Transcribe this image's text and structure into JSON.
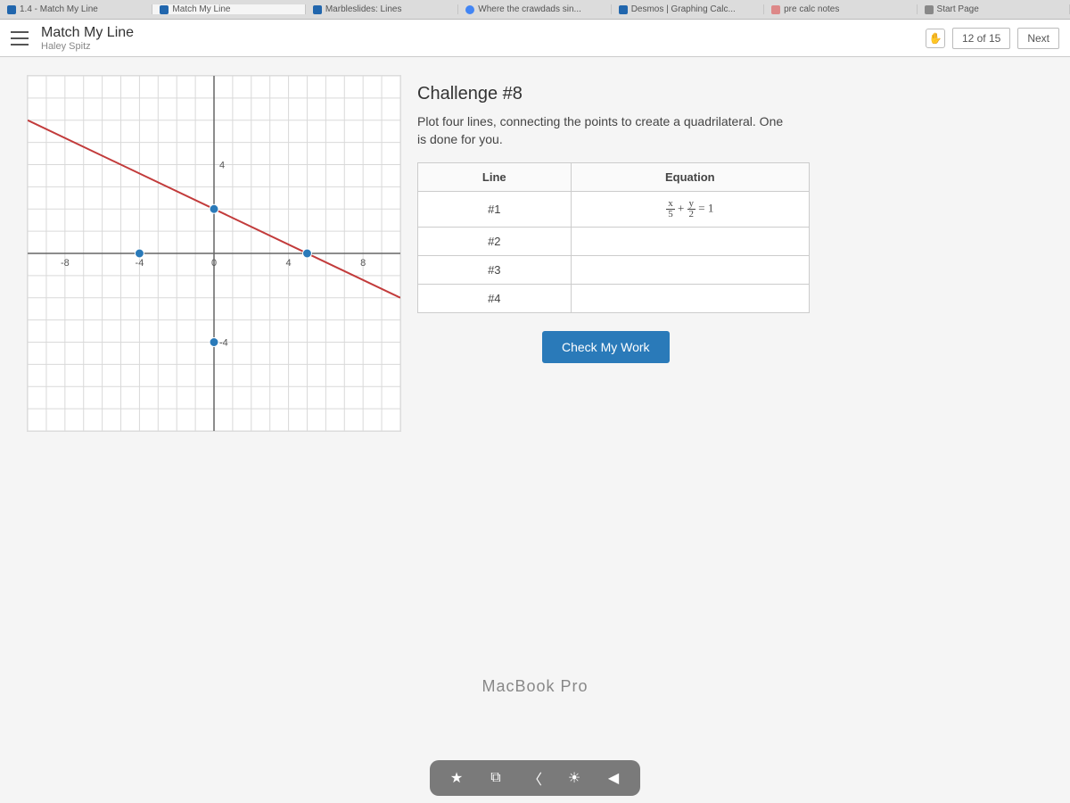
{
  "browser_tabs": [
    {
      "label": "1.4 - Match My Line",
      "icon": "desmos",
      "active": false
    },
    {
      "label": "Match My Line",
      "icon": "desmos",
      "active": true
    },
    {
      "label": "Marbleslides: Lines",
      "icon": "desmos",
      "active": false
    },
    {
      "label": "Where the crawdads sin...",
      "icon": "search",
      "active": false
    },
    {
      "label": "Desmos | Graphing Calc...",
      "icon": "desmos",
      "active": false
    },
    {
      "label": "pre calc notes",
      "icon": "notes",
      "active": false
    },
    {
      "label": "Start Page",
      "icon": "star",
      "active": false
    }
  ],
  "header": {
    "title": "Match My Line",
    "subtitle": "Haley Spitz",
    "progress": "12 of 15",
    "next": "Next"
  },
  "challenge": {
    "title": "Challenge #8",
    "description": "Plot four lines, connecting the points to create a quadrilateral. One is done for you."
  },
  "table": {
    "col1": "Line",
    "col2": "Equation",
    "rows": [
      {
        "line": "#1",
        "eq_html": "<span class='frac'><span class='num'>x</span><span class='den'>5</span></span> + <span class='frac'><span class='num'>y</span><span class='den'>2</span></span> = 1"
      },
      {
        "line": "#2",
        "eq_html": ""
      },
      {
        "line": "#3",
        "eq_html": ""
      },
      {
        "line": "#4",
        "eq_html": ""
      }
    ]
  },
  "check_button": "Check My Work",
  "graph": {
    "xlim": [
      -10,
      10
    ],
    "ylim": [
      -8,
      8
    ],
    "xtick_step": 4,
    "ytick_step": 4,
    "xtick_labels": {
      "-8": "-8",
      "-4": "-4",
      "0": "0",
      "4": "4",
      "8": "8"
    },
    "ytick_labels": {
      "4": "4",
      "-4": "-4"
    },
    "grid_color": "#d9d9d9",
    "axis_color": "#666666",
    "background_color": "#ffffff",
    "line": {
      "x1": -10,
      "y1": 6,
      "x2": 10,
      "y2": -2,
      "color": "#c23b3b",
      "width": 2
    },
    "points": [
      {
        "x": -4,
        "y": 0,
        "color": "#2a7ab9"
      },
      {
        "x": 0,
        "y": 2,
        "color": "#2a7ab9"
      },
      {
        "x": 5,
        "y": 0,
        "color": "#2a7ab9"
      },
      {
        "x": 0,
        "y": -4,
        "color": "#2a7ab9"
      }
    ],
    "point_radius": 5,
    "label_fontsize": 11,
    "label_color": "#555555"
  },
  "macbook_label": "MacBook Pro",
  "colors": {
    "button_bg": "#2a7ab9",
    "button_text": "#ffffff"
  }
}
